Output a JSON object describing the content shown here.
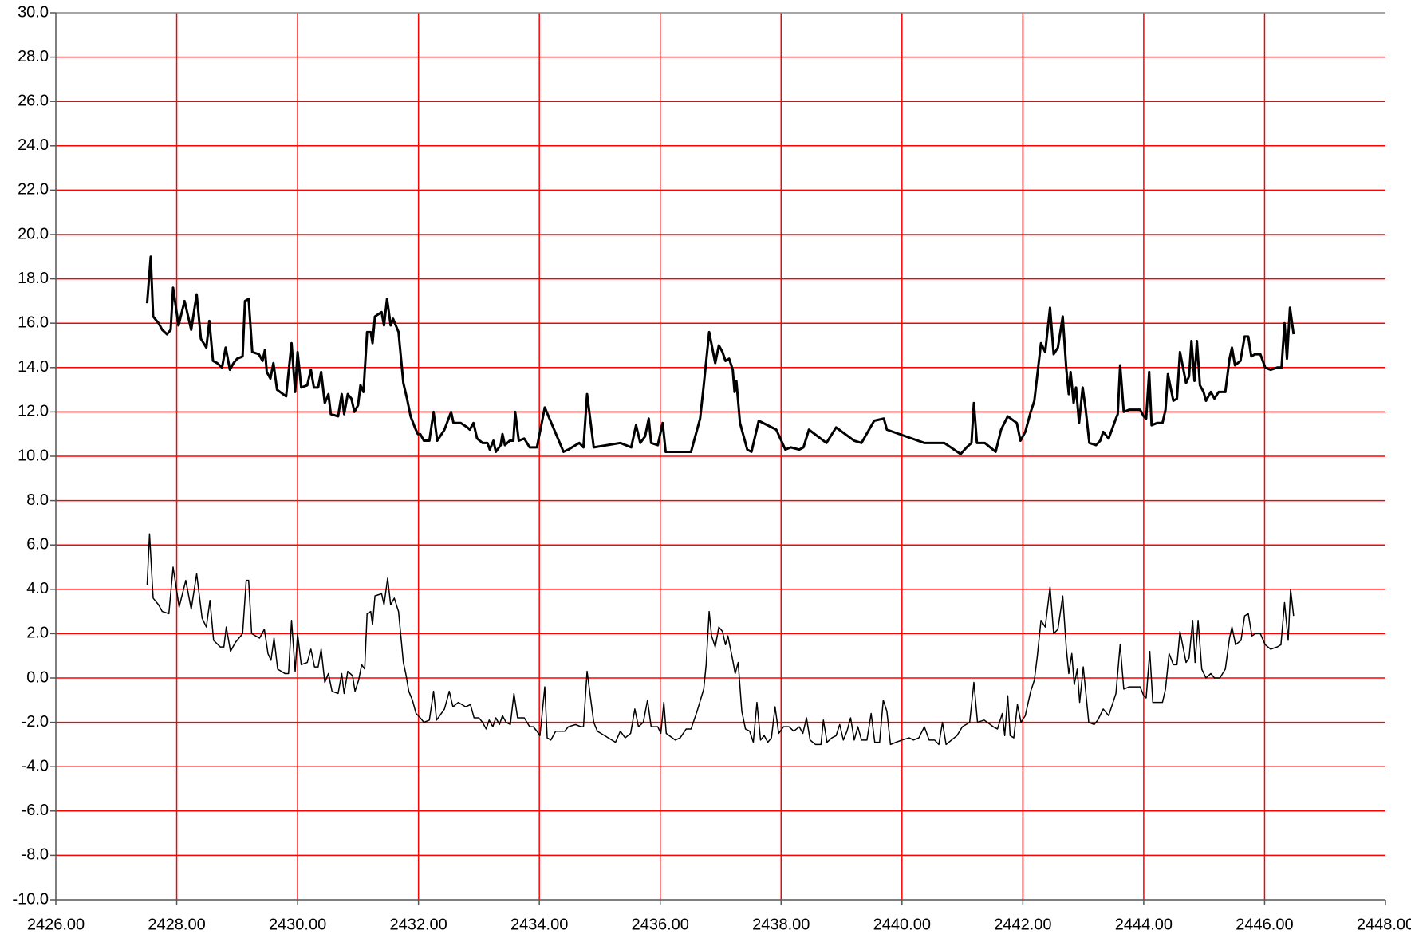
{
  "chart_data": {
    "type": "line",
    "xlim": [
      2426,
      2448
    ],
    "ylim": [
      -10,
      30
    ],
    "xticks": [
      {
        "value": 2426,
        "label": "2426.00"
      },
      {
        "value": 2428,
        "label": "2428.00"
      },
      {
        "value": 2430,
        "label": "2430.00"
      },
      {
        "value": 2432,
        "label": "2432.00"
      },
      {
        "value": 2434,
        "label": "2434.00"
      },
      {
        "value": 2436,
        "label": "2436.00"
      },
      {
        "value": 2438,
        "label": "2438.00"
      },
      {
        "value": 2440,
        "label": "2440.00"
      },
      {
        "value": 2442,
        "label": "2442.00"
      },
      {
        "value": 2444,
        "label": "2444.00"
      },
      {
        "value": 2446,
        "label": "2446.00"
      },
      {
        "value": 2448,
        "label": "2448.00"
      }
    ],
    "yticks": [
      {
        "value": 30,
        "label": "30.0"
      },
      {
        "value": 28,
        "label": "28.0"
      },
      {
        "value": 26,
        "label": "26.0"
      },
      {
        "value": 24,
        "label": "24.0"
      },
      {
        "value": 22,
        "label": "22.0"
      },
      {
        "value": 20,
        "label": "20.0"
      },
      {
        "value": 18,
        "label": "18.0"
      },
      {
        "value": 16,
        "label": "16.0"
      },
      {
        "value": 14,
        "label": "14.0"
      },
      {
        "value": 12,
        "label": "12.0"
      },
      {
        "value": 10,
        "label": "10.0"
      },
      {
        "value": 8,
        "label": "8.0"
      },
      {
        "value": 6,
        "label": "6.0"
      },
      {
        "value": 4,
        "label": "4.0"
      },
      {
        "value": 2,
        "label": "2.0"
      },
      {
        "value": 0,
        "label": "0.0"
      },
      {
        "value": -2,
        "label": "-2.0"
      },
      {
        "value": -4,
        "label": "-4.0"
      },
      {
        "value": -6,
        "label": "-6.0"
      },
      {
        "value": -8,
        "label": "-8.0"
      },
      {
        "value": -10,
        "label": "-10.0"
      }
    ],
    "grid": true,
    "grid_color": "#ff0000",
    "series": [
      {
        "color": "#000000",
        "line_width": 3,
        "x": [
          2427.51,
          2427.57,
          2427.61,
          2427.7,
          2427.76,
          2427.84,
          2427.9,
          2427.94,
          2428.03,
          2428.13,
          2428.24,
          2428.33,
          2428.4,
          2428.49,
          2428.54,
          2428.6,
          2428.67,
          2428.75,
          2428.81,
          2428.88,
          2428.94,
          2429.0,
          2429.09,
          2429.13,
          2429.19,
          2429.25,
          2429.36,
          2429.42,
          2429.46,
          2429.49,
          2429.55,
          2429.6,
          2429.66,
          2429.76,
          2429.81,
          2429.9,
          2429.96,
          2430.0,
          2430.06,
          2430.16,
          2430.22,
          2430.27,
          2430.34,
          2430.39,
          2430.45,
          2430.51,
          2430.55,
          2430.67,
          2430.73,
          2430.77,
          2430.83,
          2430.89,
          2430.94,
          2431.0,
          2431.04,
          2431.09,
          2431.15,
          2431.21,
          2431.24,
          2431.28,
          2431.39,
          2431.43,
          2431.48,
          2431.54,
          2431.58,
          2431.67,
          2431.75,
          2431.81,
          2431.87,
          2431.94,
          2431.99,
          2432.03,
          2432.09,
          2432.18,
          2432.25,
          2432.31,
          2432.43,
          2432.54,
          2432.58,
          2432.7,
          2432.81,
          2432.85,
          2432.91,
          2432.97,
          2433.06,
          2433.14,
          2433.18,
          2433.24,
          2433.28,
          2433.36,
          2433.39,
          2433.43,
          2433.51,
          2433.57,
          2433.6,
          2433.66,
          2433.75,
          2433.84,
          2433.96,
          2434.09,
          2434.4,
          2434.48,
          2434.66,
          2434.73,
          2434.79,
          2434.9,
          2435.34,
          2435.52,
          2435.6,
          2435.67,
          2435.75,
          2435.81,
          2435.85,
          2435.96,
          2436.04,
          2436.09,
          2436.51,
          2436.66,
          2436.72,
          2436.81,
          2436.91,
          2436.97,
          2437.03,
          2437.08,
          2437.14,
          2437.2,
          2437.23,
          2437.26,
          2437.32,
          2437.44,
          2437.51,
          2437.63,
          2437.92,
          2438.07,
          2438.16,
          2438.3,
          2438.37,
          2438.46,
          2438.75,
          2438.91,
          2439.21,
          2439.33,
          2439.54,
          2439.7,
          2439.75,
          2440.37,
          2440.7,
          2440.97,
          2441.07,
          2441.15,
          2441.19,
          2441.24,
          2441.37,
          2441.55,
          2441.64,
          2441.75,
          2441.9,
          2441.96,
          2442.04,
          2442.13,
          2442.19,
          2442.3,
          2442.37,
          2442.45,
          2442.51,
          2442.58,
          2442.66,
          2442.72,
          2442.76,
          2442.79,
          2442.84,
          2442.88,
          2442.93,
          2442.99,
          2443.04,
          2443.1,
          2443.21,
          2443.28,
          2443.33,
          2443.42,
          2443.54,
          2443.57,
          2443.61,
          2443.67,
          2443.76,
          2443.94,
          2444.0,
          2444.04,
          2444.09,
          2444.13,
          2444.22,
          2444.31,
          2444.36,
          2444.4,
          2444.49,
          2444.55,
          2444.6,
          2444.7,
          2444.75,
          2444.79,
          2444.84,
          2444.88,
          2444.93,
          2444.99,
          2445.03,
          2445.11,
          2445.17,
          2445.24,
          2445.35,
          2445.42,
          2445.46,
          2445.51,
          2445.6,
          2445.67,
          2445.73,
          2445.78,
          2445.84,
          2445.93,
          2446.01,
          2446.1,
          2446.21,
          2446.28,
          2446.33,
          2446.37,
          2446.42,
          2446.48
        ],
        "values": [
          16.9,
          19.0,
          16.3,
          16.0,
          15.7,
          15.5,
          15.7,
          17.6,
          15.9,
          17.0,
          15.7,
          17.3,
          15.3,
          14.9,
          16.1,
          14.3,
          14.2,
          14.0,
          14.9,
          13.9,
          14.2,
          14.4,
          14.5,
          17.0,
          17.1,
          14.7,
          14.6,
          14.3,
          14.8,
          13.8,
          13.5,
          14.2,
          13.0,
          12.8,
          12.7,
          15.1,
          12.9,
          14.7,
          13.1,
          13.2,
          13.9,
          13.1,
          13.1,
          13.8,
          12.4,
          12.8,
          11.9,
          11.8,
          12.8,
          11.9,
          12.8,
          12.6,
          12.0,
          12.3,
          13.2,
          12.9,
          15.6,
          15.6,
          15.1,
          16.3,
          16.5,
          15.9,
          17.1,
          15.9,
          16.2,
          15.6,
          13.3,
          12.6,
          11.8,
          11.3,
          11.0,
          11.0,
          10.7,
          10.7,
          12.0,
          10.7,
          11.2,
          12.0,
          11.5,
          11.5,
          11.3,
          11.2,
          11.5,
          10.8,
          10.6,
          10.6,
          10.3,
          10.7,
          10.2,
          10.5,
          11.0,
          10.5,
          10.7,
          10.7,
          12.0,
          10.7,
          10.8,
          10.4,
          10.4,
          12.2,
          10.2,
          10.3,
          10.6,
          10.4,
          12.8,
          10.4,
          10.6,
          10.4,
          11.4,
          10.6,
          10.9,
          11.7,
          10.6,
          10.5,
          11.5,
          10.2,
          10.2,
          11.7,
          13.2,
          15.6,
          14.2,
          15.0,
          14.7,
          14.3,
          14.4,
          13.9,
          12.9,
          13.4,
          11.5,
          10.3,
          10.2,
          11.6,
          11.2,
          10.3,
          10.4,
          10.3,
          10.4,
          11.2,
          10.6,
          11.3,
          10.7,
          10.6,
          11.6,
          11.7,
          11.2,
          10.6,
          10.6,
          10.1,
          10.4,
          10.6,
          12.4,
          10.6,
          10.6,
          10.2,
          11.2,
          11.8,
          11.5,
          10.7,
          11.1,
          12.0,
          12.5,
          15.1,
          14.7,
          16.7,
          14.6,
          14.9,
          16.3,
          13.9,
          12.8,
          13.8,
          12.4,
          13.1,
          11.5,
          13.1,
          12.1,
          10.6,
          10.5,
          10.7,
          11.1,
          10.8,
          11.7,
          11.9,
          14.1,
          12.0,
          12.1,
          12.1,
          11.8,
          11.7,
          13.8,
          11.4,
          11.5,
          11.5,
          12.1,
          13.7,
          12.5,
          12.6,
          14.7,
          13.3,
          13.6,
          15.2,
          13.4,
          15.2,
          13.2,
          12.9,
          12.5,
          12.9,
          12.6,
          12.9,
          12.9,
          14.4,
          14.9,
          14.1,
          14.3,
          15.4,
          15.4,
          14.5,
          14.6,
          14.6,
          14.0,
          13.9,
          14.0,
          14.0,
          16.0,
          14.4,
          16.7,
          15.5
        ]
      },
      {
        "color": "#000000",
        "line_width": 1.5,
        "x": [
          2427.51,
          2427.55,
          2427.61,
          2427.7,
          2427.76,
          2427.87,
          2427.94,
          2428.04,
          2428.15,
          2428.24,
          2428.33,
          2428.42,
          2428.49,
          2428.55,
          2428.61,
          2428.72,
          2428.78,
          2428.82,
          2428.89,
          2428.97,
          2429.09,
          2429.15,
          2429.19,
          2429.24,
          2429.37,
          2429.45,
          2429.51,
          2429.56,
          2429.61,
          2429.67,
          2429.79,
          2429.85,
          2429.9,
          2429.96,
          2430.0,
          2430.06,
          2430.16,
          2430.22,
          2430.28,
          2430.34,
          2430.39,
          2430.45,
          2430.51,
          2430.57,
          2430.67,
          2430.73,
          2430.77,
          2430.83,
          2430.91,
          2430.95,
          2431.01,
          2431.06,
          2431.11,
          2431.15,
          2431.21,
          2431.24,
          2431.28,
          2431.39,
          2431.43,
          2431.49,
          2431.54,
          2431.6,
          2431.67,
          2431.75,
          2431.79,
          2431.84,
          2431.9,
          2431.96,
          2432.03,
          2432.09,
          2432.18,
          2432.25,
          2432.3,
          2432.43,
          2432.51,
          2432.57,
          2432.66,
          2432.78,
          2432.86,
          2432.92,
          2433.0,
          2433.06,
          2433.12,
          2433.17,
          2433.23,
          2433.28,
          2433.34,
          2433.39,
          2433.45,
          2433.52,
          2433.58,
          2433.64,
          2433.75,
          2433.84,
          2433.9,
          2433.96,
          2434.01,
          2434.09,
          2434.13,
          2434.19,
          2434.27,
          2434.42,
          2434.48,
          2434.6,
          2434.69,
          2434.73,
          2434.79,
          2434.9,
          2434.96,
          2435.08,
          2435.26,
          2435.34,
          2435.42,
          2435.51,
          2435.58,
          2435.64,
          2435.72,
          2435.79,
          2435.85,
          2435.96,
          2436.01,
          2436.06,
          2436.1,
          2436.25,
          2436.33,
          2436.43,
          2436.51,
          2436.61,
          2436.72,
          2436.76,
          2436.81,
          2436.85,
          2436.91,
          2436.97,
          2437.03,
          2437.08,
          2437.12,
          2437.2,
          2437.24,
          2437.29,
          2437.35,
          2437.41,
          2437.48,
          2437.54,
          2437.6,
          2437.66,
          2437.72,
          2437.78,
          2437.84,
          2437.9,
          2437.96,
          2438.04,
          2438.13,
          2438.21,
          2438.3,
          2438.36,
          2438.42,
          2438.48,
          2438.57,
          2438.66,
          2438.7,
          2438.76,
          2438.84,
          2438.91,
          2438.97,
          2439.03,
          2439.09,
          2439.15,
          2439.21,
          2439.27,
          2439.33,
          2439.42,
          2439.49,
          2439.55,
          2439.63,
          2439.69,
          2439.75,
          2439.81,
          2439.9,
          2440.0,
          2440.12,
          2440.19,
          2440.28,
          2440.37,
          2440.45,
          2440.54,
          2440.61,
          2440.67,
          2440.73,
          2440.82,
          2440.91,
          2441.0,
          2441.12,
          2441.19,
          2441.25,
          2441.36,
          2441.51,
          2441.58,
          2441.66,
          2441.7,
          2441.75,
          2441.79,
          2441.85,
          2441.91,
          2441.97,
          2442.04,
          2442.13,
          2442.19,
          2442.24,
          2442.3,
          2442.37,
          2442.45,
          2442.51,
          2442.58,
          2442.66,
          2442.72,
          2442.76,
          2442.81,
          2442.85,
          2442.9,
          2442.94,
          2443.0,
          2443.09,
          2443.18,
          2443.24,
          2443.33,
          2443.42,
          2443.54,
          2443.61,
          2443.67,
          2443.76,
          2443.94,
          2444.0,
          2444.04,
          2444.1,
          2444.15,
          2444.31,
          2444.36,
          2444.42,
          2444.49,
          2444.55,
          2444.6,
          2444.7,
          2444.75,
          2444.81,
          2444.85,
          2444.9,
          2444.96,
          2445.03,
          2445.11,
          2445.17,
          2445.26,
          2445.35,
          2445.42,
          2445.46,
          2445.52,
          2445.61,
          2445.67,
          2445.73,
          2445.79,
          2445.85,
          2445.93,
          2446.01,
          2446.1,
          2446.21,
          2446.27,
          2446.33,
          2446.39,
          2446.43,
          2446.48
        ],
        "values": [
          4.2,
          6.5,
          3.6,
          3.3,
          3.0,
          2.9,
          5.0,
          3.2,
          4.4,
          3.1,
          4.7,
          2.7,
          2.3,
          3.5,
          1.7,
          1.4,
          1.4,
          2.3,
          1.2,
          1.6,
          2.0,
          4.4,
          4.4,
          2.0,
          1.8,
          2.2,
          1.1,
          0.8,
          1.8,
          0.4,
          0.2,
          0.2,
          2.6,
          0.3,
          2.0,
          0.6,
          0.7,
          1.3,
          0.5,
          0.5,
          1.3,
          -0.2,
          0.2,
          -0.6,
          -0.7,
          0.2,
          -0.7,
          0.3,
          0.1,
          -0.6,
          -0.1,
          0.6,
          0.4,
          2.9,
          3.0,
          2.4,
          3.7,
          3.8,
          3.3,
          4.5,
          3.3,
          3.6,
          3.0,
          0.7,
          0.2,
          -0.6,
          -1.0,
          -1.6,
          -1.8,
          -2.0,
          -1.9,
          -0.6,
          -1.9,
          -1.4,
          -0.6,
          -1.3,
          -1.1,
          -1.3,
          -1.2,
          -1.8,
          -1.8,
          -2.0,
          -2.3,
          -1.9,
          -2.2,
          -1.8,
          -2.1,
          -1.7,
          -2.0,
          -2.1,
          -0.7,
          -1.8,
          -1.8,
          -2.2,
          -2.2,
          -2.4,
          -2.6,
          -0.4,
          -2.7,
          -2.8,
          -2.4,
          -2.4,
          -2.2,
          -2.1,
          -2.2,
          -2.2,
          0.3,
          -2.0,
          -2.4,
          -2.6,
          -2.9,
          -2.4,
          -2.7,
          -2.5,
          -1.4,
          -2.2,
          -2.0,
          -1.0,
          -2.2,
          -2.2,
          -2.5,
          -1.1,
          -2.5,
          -2.8,
          -2.7,
          -2.3,
          -2.3,
          -1.5,
          -0.5,
          0.6,
          3.0,
          1.9,
          1.4,
          2.3,
          2.1,
          1.5,
          1.9,
          0.8,
          0.2,
          0.7,
          -1.5,
          -2.3,
          -2.4,
          -2.9,
          -1.1,
          -2.8,
          -2.6,
          -2.9,
          -2.7,
          -1.3,
          -2.5,
          -2.2,
          -2.2,
          -2.4,
          -2.2,
          -2.5,
          -1.8,
          -2.8,
          -3.0,
          -3.0,
          -1.9,
          -2.9,
          -2.7,
          -2.6,
          -2.1,
          -2.8,
          -2.4,
          -1.8,
          -2.8,
          -2.2,
          -2.8,
          -2.8,
          -1.6,
          -2.9,
          -2.9,
          -1.0,
          -1.5,
          -3.0,
          -2.9,
          -2.8,
          -2.7,
          -2.8,
          -2.7,
          -2.2,
          -2.8,
          -2.8,
          -3.0,
          -2.0,
          -3.0,
          -2.8,
          -2.6,
          -2.2,
          -2.0,
          -0.2,
          -2.0,
          -1.9,
          -2.2,
          -2.3,
          -1.6,
          -2.6,
          -0.8,
          -2.6,
          -2.7,
          -1.2,
          -2.0,
          -1.7,
          -0.6,
          -0.1,
          1.0,
          2.6,
          2.3,
          4.1,
          2.0,
          2.2,
          3.7,
          1.3,
          0.2,
          1.1,
          -0.3,
          0.4,
          -1.1,
          0.5,
          -2.0,
          -2.1,
          -1.9,
          -1.4,
          -1.7,
          -0.7,
          1.5,
          -0.5,
          -0.4,
          -0.4,
          -0.8,
          -0.9,
          1.2,
          -1.1,
          -1.1,
          -0.5,
          1.1,
          0.6,
          0.6,
          2.1,
          0.7,
          0.9,
          2.6,
          0.7,
          2.6,
          0.4,
          0.0,
          0.2,
          0.0,
          0.0,
          0.4,
          1.8,
          2.3,
          1.5,
          1.7,
          2.8,
          2.9,
          1.9,
          2.0,
          2.0,
          1.5,
          1.3,
          1.4,
          1.5,
          3.4,
          1.7,
          4.0,
          2.8
        ]
      }
    ]
  }
}
